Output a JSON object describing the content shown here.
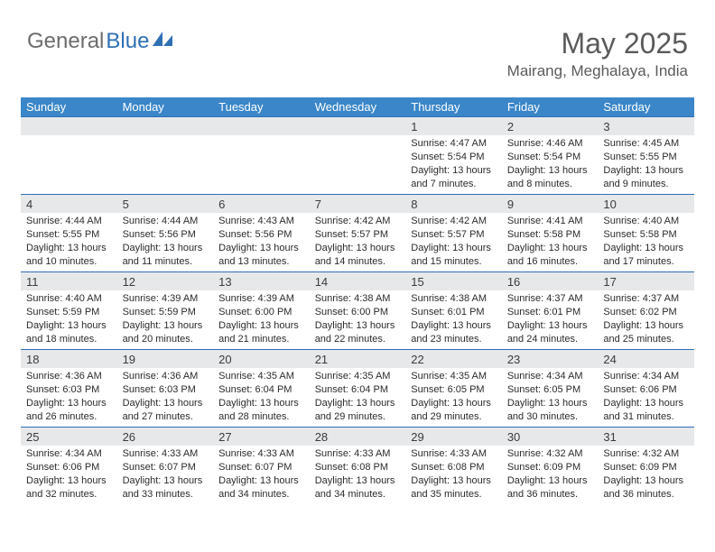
{
  "logo": {
    "word1": "General",
    "word2": "Blue",
    "text1_color": "#6c6c6c",
    "text2_color": "#2e6fb6",
    "shape_color": "#2e6fb6"
  },
  "header": {
    "title": "May 2025",
    "location": "Mairang, Meghalaya, India",
    "title_color": "#5a5a5a",
    "title_fontsize": 32,
    "location_fontsize": 17
  },
  "calendar": {
    "header_bg": "#3a86c8",
    "header_fg": "#ffffff",
    "row_border_color": "#2e6fb6",
    "daynum_bg": "#e6e8ea",
    "text_color": "#2b2b2b",
    "cell_fontsize": 11,
    "columns": [
      "Sunday",
      "Monday",
      "Tuesday",
      "Wednesday",
      "Thursday",
      "Friday",
      "Saturday"
    ],
    "weeks": [
      [
        null,
        null,
        null,
        null,
        {
          "n": "1",
          "sr": "4:47 AM",
          "ss": "5:54 PM",
          "dl": "13 hours and 7 minutes."
        },
        {
          "n": "2",
          "sr": "4:46 AM",
          "ss": "5:54 PM",
          "dl": "13 hours and 8 minutes."
        },
        {
          "n": "3",
          "sr": "4:45 AM",
          "ss": "5:55 PM",
          "dl": "13 hours and 9 minutes."
        }
      ],
      [
        {
          "n": "4",
          "sr": "4:44 AM",
          "ss": "5:55 PM",
          "dl": "13 hours and 10 minutes."
        },
        {
          "n": "5",
          "sr": "4:44 AM",
          "ss": "5:56 PM",
          "dl": "13 hours and 11 minutes."
        },
        {
          "n": "6",
          "sr": "4:43 AM",
          "ss": "5:56 PM",
          "dl": "13 hours and 13 minutes."
        },
        {
          "n": "7",
          "sr": "4:42 AM",
          "ss": "5:57 PM",
          "dl": "13 hours and 14 minutes."
        },
        {
          "n": "8",
          "sr": "4:42 AM",
          "ss": "5:57 PM",
          "dl": "13 hours and 15 minutes."
        },
        {
          "n": "9",
          "sr": "4:41 AM",
          "ss": "5:58 PM",
          "dl": "13 hours and 16 minutes."
        },
        {
          "n": "10",
          "sr": "4:40 AM",
          "ss": "5:58 PM",
          "dl": "13 hours and 17 minutes."
        }
      ],
      [
        {
          "n": "11",
          "sr": "4:40 AM",
          "ss": "5:59 PM",
          "dl": "13 hours and 18 minutes."
        },
        {
          "n": "12",
          "sr": "4:39 AM",
          "ss": "5:59 PM",
          "dl": "13 hours and 20 minutes."
        },
        {
          "n": "13",
          "sr": "4:39 AM",
          "ss": "6:00 PM",
          "dl": "13 hours and 21 minutes."
        },
        {
          "n": "14",
          "sr": "4:38 AM",
          "ss": "6:00 PM",
          "dl": "13 hours and 22 minutes."
        },
        {
          "n": "15",
          "sr": "4:38 AM",
          "ss": "6:01 PM",
          "dl": "13 hours and 23 minutes."
        },
        {
          "n": "16",
          "sr": "4:37 AM",
          "ss": "6:01 PM",
          "dl": "13 hours and 24 minutes."
        },
        {
          "n": "17",
          "sr": "4:37 AM",
          "ss": "6:02 PM",
          "dl": "13 hours and 25 minutes."
        }
      ],
      [
        {
          "n": "18",
          "sr": "4:36 AM",
          "ss": "6:03 PM",
          "dl": "13 hours and 26 minutes."
        },
        {
          "n": "19",
          "sr": "4:36 AM",
          "ss": "6:03 PM",
          "dl": "13 hours and 27 minutes."
        },
        {
          "n": "20",
          "sr": "4:35 AM",
          "ss": "6:04 PM",
          "dl": "13 hours and 28 minutes."
        },
        {
          "n": "21",
          "sr": "4:35 AM",
          "ss": "6:04 PM",
          "dl": "13 hours and 29 minutes."
        },
        {
          "n": "22",
          "sr": "4:35 AM",
          "ss": "6:05 PM",
          "dl": "13 hours and 29 minutes."
        },
        {
          "n": "23",
          "sr": "4:34 AM",
          "ss": "6:05 PM",
          "dl": "13 hours and 30 minutes."
        },
        {
          "n": "24",
          "sr": "4:34 AM",
          "ss": "6:06 PM",
          "dl": "13 hours and 31 minutes."
        }
      ],
      [
        {
          "n": "25",
          "sr": "4:34 AM",
          "ss": "6:06 PM",
          "dl": "13 hours and 32 minutes."
        },
        {
          "n": "26",
          "sr": "4:33 AM",
          "ss": "6:07 PM",
          "dl": "13 hours and 33 minutes."
        },
        {
          "n": "27",
          "sr": "4:33 AM",
          "ss": "6:07 PM",
          "dl": "13 hours and 34 minutes."
        },
        {
          "n": "28",
          "sr": "4:33 AM",
          "ss": "6:08 PM",
          "dl": "13 hours and 34 minutes."
        },
        {
          "n": "29",
          "sr": "4:33 AM",
          "ss": "6:08 PM",
          "dl": "13 hours and 35 minutes."
        },
        {
          "n": "30",
          "sr": "4:32 AM",
          "ss": "6:09 PM",
          "dl": "13 hours and 36 minutes."
        },
        {
          "n": "31",
          "sr": "4:32 AM",
          "ss": "6:09 PM",
          "dl": "13 hours and 36 minutes."
        }
      ]
    ],
    "labels": {
      "sunrise": "Sunrise: ",
      "sunset": "Sunset: ",
      "daylight": "Daylight: "
    }
  }
}
